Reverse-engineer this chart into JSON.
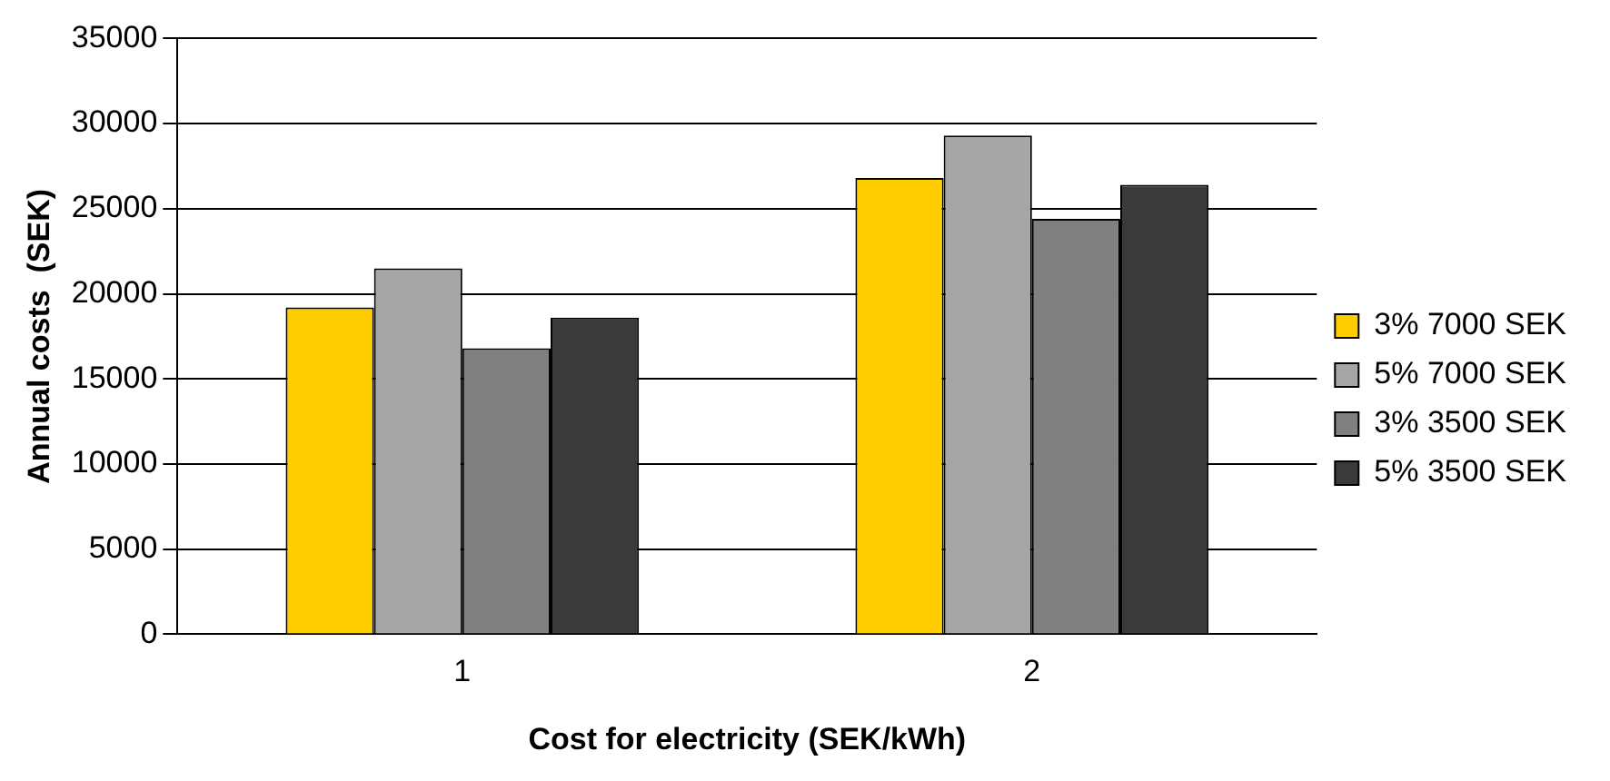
{
  "chart_data": {
    "type": "bar",
    "xlabel": "Cost for electricity (SEK/kWh)",
    "ylabel": "Annual costs  (SEK)",
    "categories": [
      "1",
      "2"
    ],
    "series": [
      {
        "name": "3% 7000 SEK",
        "color": "#ffcc00",
        "values": [
          19200,
          26800
        ]
      },
      {
        "name": "5% 7000 SEK",
        "color": "#a6a6a6",
        "values": [
          21500,
          29300
        ]
      },
      {
        "name": "3% 3500 SEK",
        "color": "#808080",
        "values": [
          16800,
          24400
        ]
      },
      {
        "name": "5% 3500 SEK",
        "color": "#3a3a3a",
        "values": [
          18600,
          26400
        ]
      }
    ],
    "ylim": [
      0,
      35000
    ],
    "yticks": [
      0,
      5000,
      10000,
      15000,
      20000,
      25000,
      30000,
      35000
    ],
    "grid": "y",
    "legend": "right"
  }
}
